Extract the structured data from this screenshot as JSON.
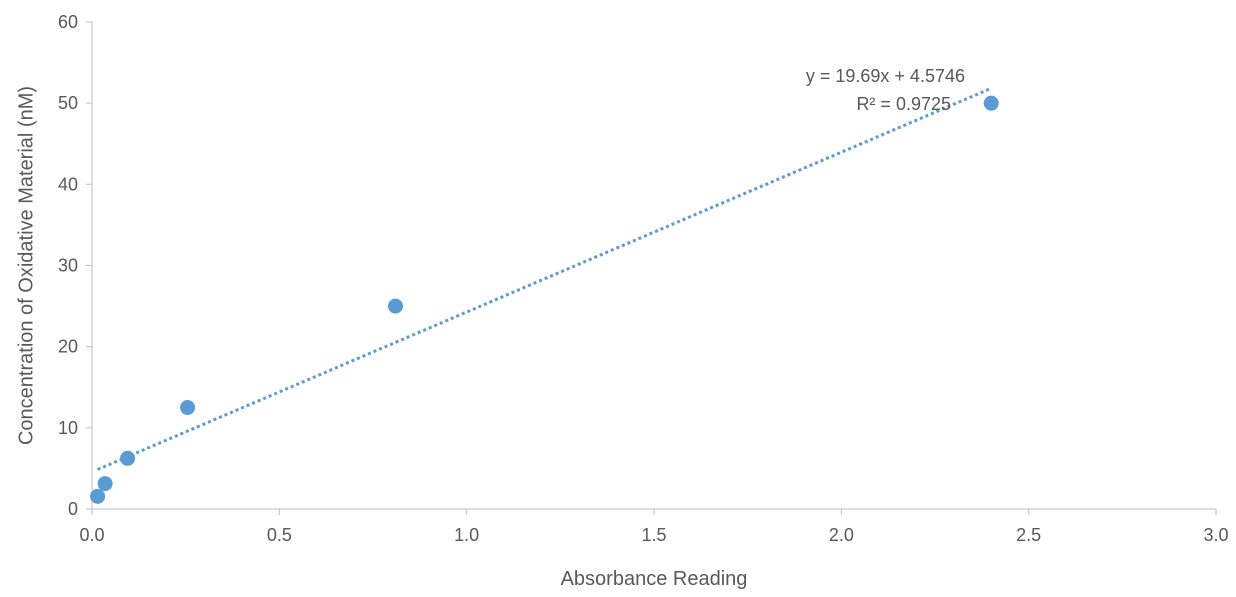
{
  "chart_data": {
    "type": "scatter",
    "title": "",
    "xlabel": "Absorbance Reading",
    "ylabel": "Concentration of Oxidative Material (nM)",
    "xlim": [
      0,
      3
    ],
    "ylim": [
      0,
      60
    ],
    "x_ticks": [
      "0.0",
      "0.5",
      "1.0",
      "1.5",
      "2.0",
      "2.5",
      "3.0"
    ],
    "y_ticks": [
      "0",
      "10",
      "20",
      "30",
      "40",
      "50",
      "60"
    ],
    "grid": false,
    "legend": "none",
    "point_color": "#5B9BD5",
    "trendline_color": "#5B9BD5",
    "series": [
      {
        "points": [
          {
            "x": 0.015,
            "y": 1.56
          },
          {
            "x": 0.035,
            "y": 3.13
          },
          {
            "x": 0.095,
            "y": 6.25
          },
          {
            "x": 0.255,
            "y": 12.5
          },
          {
            "x": 0.81,
            "y": 25
          },
          {
            "x": 2.4,
            "y": 50
          }
        ]
      }
    ],
    "trendline": {
      "slope": 19.69,
      "intercept": 4.5746,
      "x_range": [
        0.015,
        2.4
      ],
      "style": "dotted"
    },
    "annotations": {
      "equation": "y = 19.69x + 4.5746",
      "r_squared": "R² = 0.9725"
    }
  }
}
